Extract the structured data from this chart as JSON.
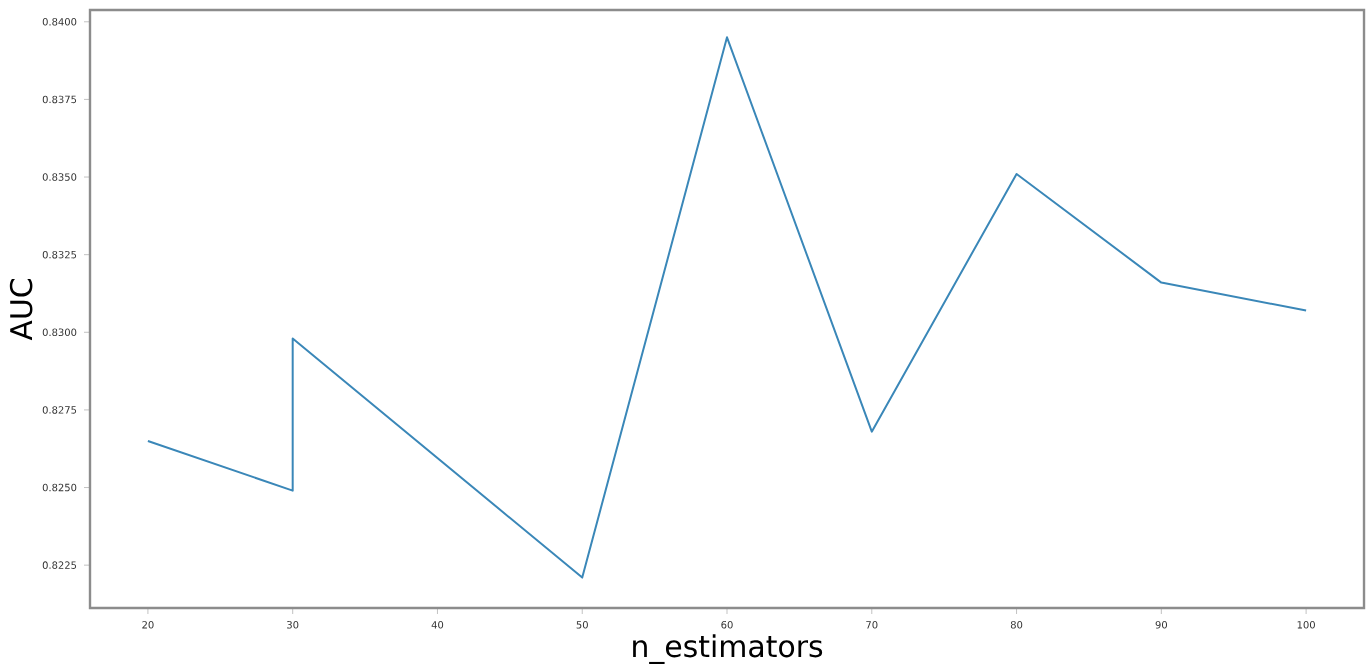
{
  "chart_data": {
    "type": "line",
    "xlabel": "n_estimators",
    "ylabel": "AUC",
    "x": [
      20,
      30,
      30,
      50,
      60,
      70,
      80,
      90,
      100
    ],
    "series": [
      {
        "color": "#3a87b8",
        "values": [
          0.8265,
          0.8249,
          0.8298,
          0.8221,
          0.8395,
          0.8268,
          0.8351,
          0.8316,
          0.8307
        ]
      }
    ],
    "xlim": [
      16,
      104
    ],
    "ylim": [
      0.82112,
      0.84038
    ],
    "xticks": [
      20,
      30,
      40,
      50,
      60,
      70,
      80,
      90,
      100
    ],
    "yticks": [
      {
        "value": 0.8225,
        "label": "0.8225"
      },
      {
        "value": 0.825,
        "label": "0.8250"
      },
      {
        "value": 0.8275,
        "label": "0.8275"
      },
      {
        "value": 0.83,
        "label": "0.8300"
      },
      {
        "value": 0.8325,
        "label": "0.8325"
      },
      {
        "value": 0.835,
        "label": "0.8350"
      },
      {
        "value": 0.8375,
        "label": "0.8375"
      },
      {
        "value": 0.84,
        "label": "0.8400"
      }
    ],
    "marker": "none",
    "line_style": "solid"
  }
}
